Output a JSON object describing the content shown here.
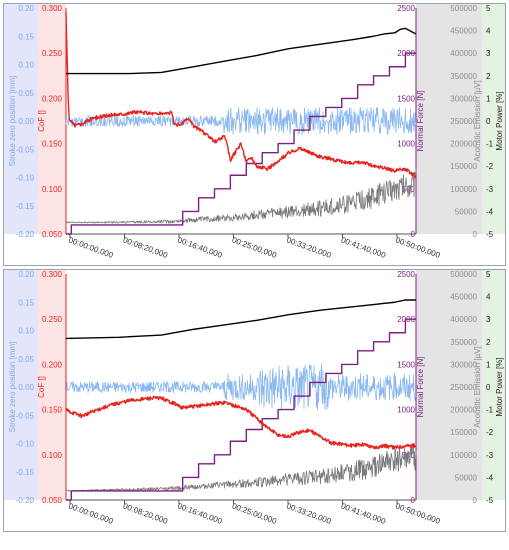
{
  "colors": {
    "stroke_axis": "#7fa7e6",
    "cof_axis": "#e8231e",
    "normal_force_axis": "#7e1e80",
    "acoustic_axis": "#8c8c8c",
    "motor_axis": "#222222",
    "stroke_band": "#e3e6fb",
    "cof_band": "#fde3e3",
    "acoustic_band": "#e4e4e4",
    "motor_band": "#e4f2e0",
    "stroke_line": "#8ab8f0",
    "cof_line": "#e8231e",
    "force_line": "#7e1e80",
    "acoustic_line": "#7a7a7a",
    "motor_line": "#000000"
  },
  "chart_data": [
    {
      "type": "line",
      "axes": {
        "stroke": {
          "label": "Stroke zero position [mm]",
          "range": [
            -0.2,
            0.2
          ],
          "ticks": [
            "0.20",
            "0.15",
            "0.10",
            "0.05",
            "0.00",
            "-0.05",
            "-0.10",
            "-0.15",
            "-0.20"
          ]
        },
        "cof": {
          "label": "CoF []",
          "range": [
            0.05,
            0.3
          ],
          "ticks": [
            "0.300",
            "0.250",
            "0.200",
            "0.150",
            "0.100",
            "0.050"
          ]
        },
        "normal_force": {
          "label": "Normal Force [N]",
          "range": [
            0,
            2500
          ],
          "ticks": [
            "2500",
            "2000",
            "1500",
            "1000",
            "500",
            "0"
          ]
        },
        "acoustic": {
          "label": "Acoustic Emission [µV]",
          "range": [
            0,
            500000
          ],
          "ticks": [
            "500000",
            "450000",
            "400000",
            "350000",
            "300000",
            "250000",
            "200000",
            "150000",
            "100000",
            "50000",
            "0"
          ]
        },
        "motor": {
          "label": "Motor Power [%]",
          "range": [
            -5,
            5
          ],
          "ticks": [
            "5",
            "4",
            "3",
            "2",
            "1",
            "0",
            "-1",
            "-2",
            "-3",
            "-4",
            "-5"
          ]
        },
        "x": {
          "range_s": [
            0,
            3300
          ],
          "ticks": [
            "00:00:00,000",
            "00:08:20,000",
            "00:16:40,000",
            "00:25:00,000",
            "00:33:20,000",
            "00:41:40,000",
            "00:50:00,000"
          ]
        }
      },
      "series": [
        {
          "key": "motor",
          "axis": "motor",
          "x_s": [
            0,
            600,
            900,
            1200,
            1500,
            1800,
            2100,
            2400,
            2700,
            2900,
            3000,
            3100,
            3150,
            3200,
            3300
          ],
          "y": [
            2.1,
            2.1,
            2.15,
            2.4,
            2.65,
            2.9,
            3.2,
            3.4,
            3.6,
            3.75,
            3.85,
            3.9,
            4.05,
            4.1,
            3.85
          ]
        },
        {
          "key": "cof",
          "axis": "cof",
          "x_s": [
            0,
            20,
            30,
            80,
            150,
            250,
            350,
            450,
            550,
            650,
            750,
            850,
            1000,
            1020,
            1100,
            1150,
            1200,
            1300,
            1400,
            1500,
            1550,
            1650,
            1700,
            1750,
            1800,
            1900,
            2000,
            2100,
            2200,
            2300,
            2400,
            2500,
            2600,
            2700,
            2800,
            2900,
            3000,
            3100,
            3200,
            3300
          ],
          "y": [
            0.295,
            0.2,
            0.178,
            0.17,
            0.172,
            0.178,
            0.18,
            0.182,
            0.183,
            0.185,
            0.184,
            0.183,
            0.184,
            0.17,
            0.172,
            0.178,
            0.17,
            0.162,
            0.152,
            0.158,
            0.132,
            0.15,
            0.13,
            0.135,
            0.125,
            0.122,
            0.13,
            0.14,
            0.145,
            0.14,
            0.135,
            0.133,
            0.13,
            0.128,
            0.13,
            0.125,
            0.123,
            0.12,
            0.122,
            0.113
          ]
        },
        {
          "key": "normal_force",
          "axis": "normal_force",
          "x_s": [
            0,
            50,
            950,
            1100,
            1250,
            1400,
            1550,
            1700,
            1850,
            2000,
            2150,
            2300,
            2450,
            2600,
            2750,
            2900,
            3050,
            3200,
            3300
          ],
          "y": [
            0,
            100,
            100,
            250,
            400,
            500,
            650,
            780,
            900,
            1000,
            1150,
            1300,
            1400,
            1500,
            1650,
            1750,
            1850,
            2000,
            2000
          ]
        },
        {
          "key": "acoustic",
          "axis": "acoustic",
          "x_s": [
            0,
            500,
            1000,
            1300,
            1600,
            1900,
            2200,
            2500,
            2700,
            2900,
            3000,
            3100,
            3200,
            3300
          ],
          "y": [
            25000,
            25000,
            26000,
            30000,
            34000,
            40000,
            45000,
            52000,
            60000,
            70000,
            80000,
            90000,
            95000,
            100000
          ]
        },
        {
          "key": "stroke",
          "axis": "stroke",
          "x_s": [
            0,
            300,
            800,
            1200,
            1800,
            2400,
            3000,
            3300
          ],
          "y": [
            0.0,
            0.0,
            0.0,
            0.0,
            0.0,
            0.0,
            0.0,
            0.0
          ]
        }
      ]
    },
    {
      "type": "line",
      "axes": {
        "stroke": {
          "label": "Stroke zero position [mm]",
          "range": [
            -0.2,
            0.2
          ],
          "ticks": [
            "0.20",
            "0.15",
            "0.10",
            "0.05",
            "0.00",
            "-0.05",
            "-0.10",
            "-0.15",
            "-0.20"
          ]
        },
        "cof": {
          "label": "CoF []",
          "range": [
            0.05,
            0.3
          ],
          "ticks": [
            "0.300",
            "0.250",
            "0.200",
            "0.150",
            "0.100",
            "0.050"
          ]
        },
        "normal_force": {
          "label": "Normal Force [N]",
          "range": [
            0,
            2500
          ],
          "ticks": [
            "2500",
            "2000",
            "1500",
            "1000",
            "500",
            "0"
          ]
        },
        "acoustic": {
          "label": "Acoustic Emission [µV]",
          "range": [
            0,
            500000
          ],
          "ticks": [
            "500000",
            "450000",
            "400000",
            "350000",
            "300000",
            "250000",
            "200000",
            "150000",
            "100000",
            "50000",
            "0"
          ]
        },
        "motor": {
          "label": "Motor Power [%]",
          "range": [
            -5,
            5
          ],
          "ticks": [
            "5",
            "4",
            "3",
            "2",
            "1",
            "0",
            "-1",
            "-2",
            "-3",
            "-4",
            "-5"
          ]
        },
        "x": {
          "range_s": [
            0,
            3300
          ],
          "ticks": [
            "00:00:00,000",
            "00:08:20,000",
            "00:16:40,000",
            "00:25:00,000",
            "00:33:20,000",
            "00:41:40,000",
            "00:50:00,000"
          ]
        }
      },
      "series": [
        {
          "key": "motor",
          "axis": "motor",
          "x_s": [
            0,
            500,
            900,
            1200,
            1500,
            1800,
            2100,
            2400,
            2700,
            2900,
            3100,
            3200,
            3300
          ],
          "y": [
            2.15,
            2.2,
            2.3,
            2.55,
            2.75,
            2.95,
            3.2,
            3.4,
            3.55,
            3.65,
            3.75,
            3.85,
            3.85
          ]
        },
        {
          "key": "cof",
          "axis": "cof",
          "x_s": [
            0,
            30,
            150,
            300,
            450,
            600,
            750,
            900,
            950,
            1000,
            1100,
            1300,
            1500,
            1700,
            1800,
            1900,
            2000,
            2100,
            2200,
            2300,
            2400,
            2500,
            2600,
            2700,
            2800,
            2900,
            3000,
            3100,
            3200,
            3300
          ],
          "y": [
            0.15,
            0.148,
            0.143,
            0.15,
            0.156,
            0.16,
            0.162,
            0.163,
            0.16,
            0.158,
            0.152,
            0.155,
            0.158,
            0.15,
            0.14,
            0.13,
            0.122,
            0.12,
            0.125,
            0.127,
            0.12,
            0.113,
            0.112,
            0.11,
            0.112,
            0.108,
            0.11,
            0.108,
            0.11,
            0.11
          ]
        },
        {
          "key": "normal_force",
          "axis": "normal_force",
          "x_s": [
            0,
            50,
            950,
            1100,
            1250,
            1400,
            1550,
            1700,
            1850,
            2000,
            2150,
            2300,
            2450,
            2600,
            2750,
            2900,
            3050,
            3200,
            3300
          ],
          "y": [
            0,
            100,
            100,
            250,
            400,
            500,
            650,
            780,
            900,
            1000,
            1150,
            1300,
            1400,
            1500,
            1650,
            1750,
            1850,
            2000,
            2000
          ]
        },
        {
          "key": "acoustic",
          "axis": "acoustic",
          "x_s": [
            0,
            500,
            1000,
            1300,
            1600,
            1900,
            2200,
            2500,
            2700,
            2900,
            3000,
            3100,
            3200,
            3300
          ],
          "y": [
            20000,
            22000,
            24000,
            28000,
            32000,
            36000,
            42000,
            48000,
            55000,
            62000,
            70000,
            75000,
            78000,
            80000
          ]
        },
        {
          "key": "stroke",
          "axis": "stroke",
          "x_s": [
            0,
            300,
            800,
            1200,
            1800,
            2400,
            3000,
            3300
          ],
          "y": [
            0.0,
            0.0,
            0.0,
            0.0,
            0.0,
            0.0,
            0.0,
            0.0
          ]
        }
      ]
    }
  ]
}
